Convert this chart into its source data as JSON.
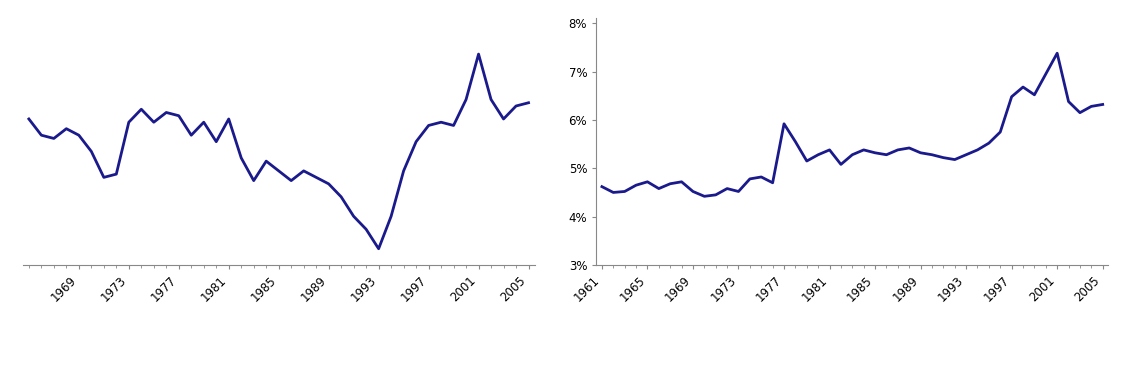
{
  "line_color": "#1a1a8c",
  "line_width": 2.0,
  "background_color": "#ffffff",
  "left_chart": {
    "years": [
      1965,
      1966,
      1967,
      1968,
      1969,
      1970,
      1971,
      1972,
      1973,
      1974,
      1975,
      1976,
      1977,
      1978,
      1979,
      1980,
      1981,
      1982,
      1983,
      1984,
      1985,
      1986,
      1987,
      1988,
      1989,
      1990,
      1991,
      1992,
      1993,
      1994,
      1995,
      1996,
      1997,
      1998,
      1999,
      2000,
      2001,
      2002,
      2003,
      2004,
      2005
    ],
    "values": [
      6.55,
      6.3,
      6.25,
      6.4,
      6.3,
      6.05,
      5.65,
      5.7,
      6.5,
      6.7,
      6.5,
      6.65,
      6.6,
      6.3,
      6.5,
      6.2,
      6.55,
      5.95,
      5.6,
      5.9,
      5.75,
      5.6,
      5.75,
      5.65,
      5.55,
      5.35,
      5.05,
      4.85,
      4.55,
      5.05,
      5.75,
      6.2,
      6.45,
      6.5,
      6.45,
      6.85,
      7.55,
      6.85,
      6.55,
      6.75,
      6.8
    ],
    "xlim": [
      1964.5,
      2005.5
    ],
    "ylim": [
      4.3,
      8.1
    ],
    "xticks": [
      1969,
      1973,
      1977,
      1981,
      1985,
      1989,
      1993,
      1997,
      2001,
      2005
    ],
    "show_yaxis": false
  },
  "right_chart": {
    "years": [
      1961,
      1962,
      1963,
      1964,
      1965,
      1966,
      1967,
      1968,
      1969,
      1970,
      1971,
      1972,
      1973,
      1974,
      1975,
      1976,
      1977,
      1978,
      1979,
      1980,
      1981,
      1982,
      1983,
      1984,
      1985,
      1986,
      1987,
      1988,
      1989,
      1990,
      1991,
      1992,
      1993,
      1994,
      1995,
      1996,
      1997,
      1998,
      1999,
      2000,
      2001,
      2002,
      2003,
      2004,
      2005
    ],
    "values": [
      4.62,
      4.5,
      4.52,
      4.65,
      4.72,
      4.58,
      4.68,
      4.72,
      4.52,
      4.42,
      4.45,
      4.58,
      4.52,
      4.78,
      4.82,
      4.7,
      5.92,
      5.55,
      5.15,
      5.28,
      5.38,
      5.08,
      5.28,
      5.38,
      5.32,
      5.28,
      5.38,
      5.42,
      5.32,
      5.28,
      5.22,
      5.18,
      5.28,
      5.38,
      5.52,
      5.75,
      6.48,
      6.68,
      6.52,
      6.95,
      7.38,
      6.38,
      6.15,
      6.28,
      6.32
    ],
    "xlim": [
      1960.5,
      2005.5
    ],
    "ylim": [
      3.0,
      8.1
    ],
    "xticks": [
      1961,
      1965,
      1969,
      1973,
      1977,
      1981,
      1985,
      1989,
      1993,
      1997,
      2001,
      2005
    ],
    "yticks": [
      3,
      4,
      5,
      6,
      7,
      8
    ],
    "ytick_labels": [
      "3%",
      "4%",
      "5%",
      "6%",
      "7%",
      "8%"
    ],
    "show_yaxis": true
  }
}
